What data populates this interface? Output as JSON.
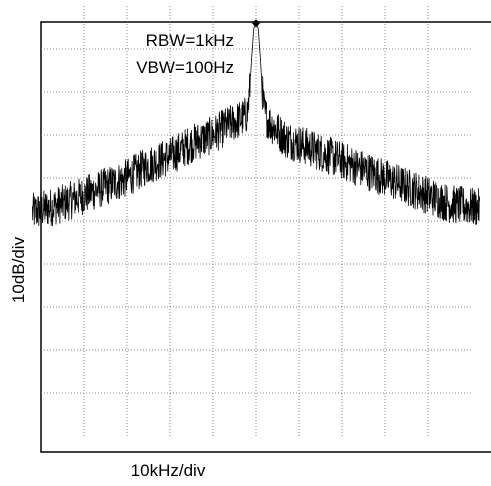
{
  "chart_data": {
    "type": "line",
    "title": "",
    "xlabel": "10kHz/div",
    "ylabel": "10dB/div",
    "annotations": [
      "RBW=1kHz",
      "VBW=100Hz"
    ],
    "x_divisions": 10,
    "y_divisions": 10,
    "x_range_kHz": [
      -50,
      50
    ],
    "y_range_div": [
      0,
      10
    ],
    "grid": true,
    "grid_style": "dotted",
    "marker": {
      "x_kHz": 0,
      "y_div": 9.6
    },
    "series": [
      {
        "color": "#000000",
        "x_kHz": [
          -52,
          -45,
          -40,
          -35,
          -30,
          -25,
          -20,
          -15,
          -10,
          -7,
          -5,
          -3,
          -2,
          -1.5,
          -1,
          -0.5,
          0,
          0.5,
          1,
          1.5,
          2,
          3,
          5,
          7,
          10,
          15,
          20,
          25,
          30,
          35,
          40,
          45,
          52
        ],
        "y_div": [
          5.2,
          5.4,
          5.6,
          5.8,
          6.0,
          6.3,
          6.5,
          6.8,
          7.0,
          7.2,
          7.3,
          7.4,
          7.5,
          8.0,
          8.8,
          9.5,
          9.6,
          9.5,
          8.8,
          8.0,
          7.5,
          7.3,
          7.1,
          6.9,
          6.8,
          6.6,
          6.4,
          6.2,
          6.0,
          5.8,
          5.6,
          5.4,
          5.3
        ]
      }
    ]
  }
}
